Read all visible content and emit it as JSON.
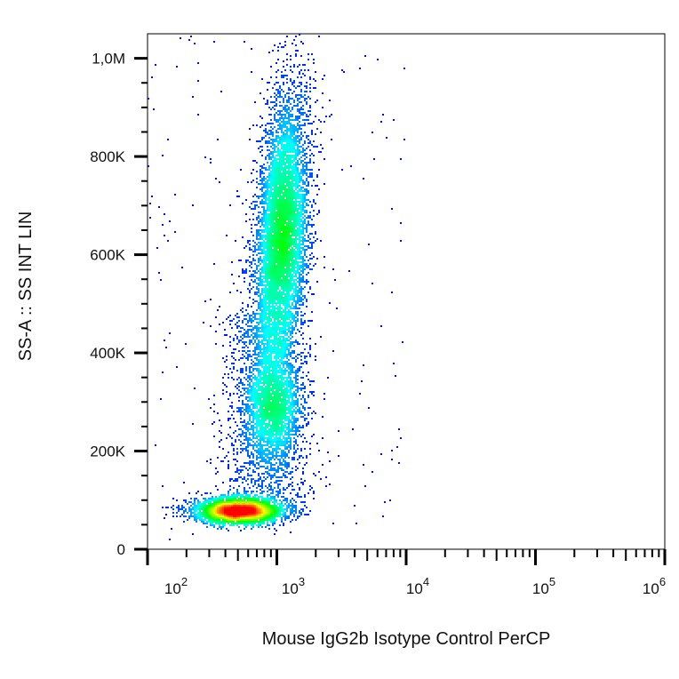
{
  "chart_data": {
    "type": "scatter",
    "subtype": "flow-cytometry density dot plot",
    "xlabel": "Mouse IgG2b Isotype Control PerCP",
    "ylabel": "SS-A :: SS INT LIN",
    "x_scale": "log",
    "xlim": [
      100,
      1000000
    ],
    "ylim": [
      0,
      1050000
    ],
    "x_ticks": [
      {
        "value": 100,
        "base": "10",
        "exp": "2"
      },
      {
        "value": 1000,
        "base": "10",
        "exp": "3"
      },
      {
        "value": 10000,
        "base": "10",
        "exp": "4"
      },
      {
        "value": 100000,
        "base": "10",
        "exp": "5"
      },
      {
        "value": 1000000,
        "base": "10",
        "exp": "6"
      }
    ],
    "y_ticks": [
      {
        "value": 0,
        "label": "0"
      },
      {
        "value": 200000,
        "label": "200K"
      },
      {
        "value": 400000,
        "label": "400K"
      },
      {
        "value": 600000,
        "label": "600K"
      },
      {
        "value": 800000,
        "label": "800K"
      },
      {
        "value": 1000000,
        "label": "1,0M"
      }
    ],
    "grid": false,
    "legend": "none",
    "colormap": [
      "#0000ff",
      "#00ffff",
      "#00ff00",
      "#ffff00",
      "#ff0000"
    ],
    "populations": [
      {
        "x_center": 510,
        "x_sd_decades": 0.17,
        "y_center": 78000,
        "y_sd": 13000,
        "events": 4200
      },
      {
        "x_center": 1100,
        "x_sd_decades": 0.1,
        "y_center": 640000,
        "y_sd": 140000,
        "x_drift_decades_per_100K": 0.018,
        "events": 7000
      },
      {
        "x_center": 950,
        "x_sd_decades": 0.11,
        "y_center": 290000,
        "y_sd": 55000,
        "events": 2000
      },
      {
        "x_center": 800,
        "x_sd_decades": 0.16,
        "y_range": [
          100000,
          480000
        ],
        "events": 1600
      },
      {
        "x_range": [
          100,
          10000
        ],
        "y_range": [
          20000,
          1050000
        ],
        "events": 220
      }
    ]
  }
}
